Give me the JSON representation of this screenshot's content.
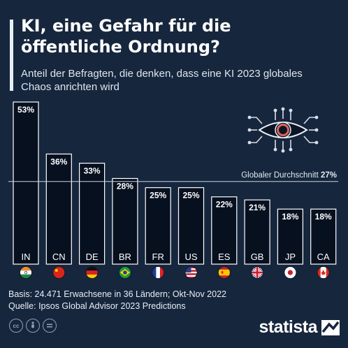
{
  "title": "KI, eine Gefahr für die öffentliche Ordnung?",
  "subtitle": "Anteil der Befragten, die denken, dass eine KI 2023 globales Chaos anrichten wird",
  "chart_data": {
    "type": "bar",
    "categories": [
      "IN",
      "CN",
      "DE",
      "BR",
      "FR",
      "US",
      "ES",
      "GB",
      "JP",
      "CA"
    ],
    "values": [
      53,
      36,
      33,
      28,
      25,
      25,
      22,
      21,
      18,
      18
    ],
    "value_labels": [
      "53%",
      "36%",
      "33%",
      "28%",
      "25%",
      "25%",
      "22%",
      "21%",
      "18%",
      "18%"
    ],
    "unit": "%",
    "ylim": [
      0,
      53
    ],
    "grid": false,
    "reference_line": {
      "label": "Globaler Durchschnitt",
      "value": 27,
      "value_label": "27%"
    },
    "flags": [
      "flag-india-icon",
      "flag-china-icon",
      "flag-germany-icon",
      "flag-brazil-icon",
      "flag-france-icon",
      "flag-usa-icon",
      "flag-spain-icon",
      "flag-uk-icon",
      "flag-japan-icon",
      "flag-canada-icon"
    ]
  },
  "footer": {
    "basis": "Basis: 24.471 Erwachsene in 36 Ländern; Okt-Nov 2022",
    "source": "Quelle: Ipsos Global Advisor 2023 Predictions"
  },
  "brand": {
    "name": "statista"
  },
  "license_icons": [
    "cc-icon",
    "by-icon",
    "nd-icon"
  ],
  "colors": {
    "background": "#16263d",
    "bar_fill": "#07101f",
    "bar_stroke": "#ffffff",
    "eye_iris": "#e06458",
    "text": "#ffffff"
  }
}
